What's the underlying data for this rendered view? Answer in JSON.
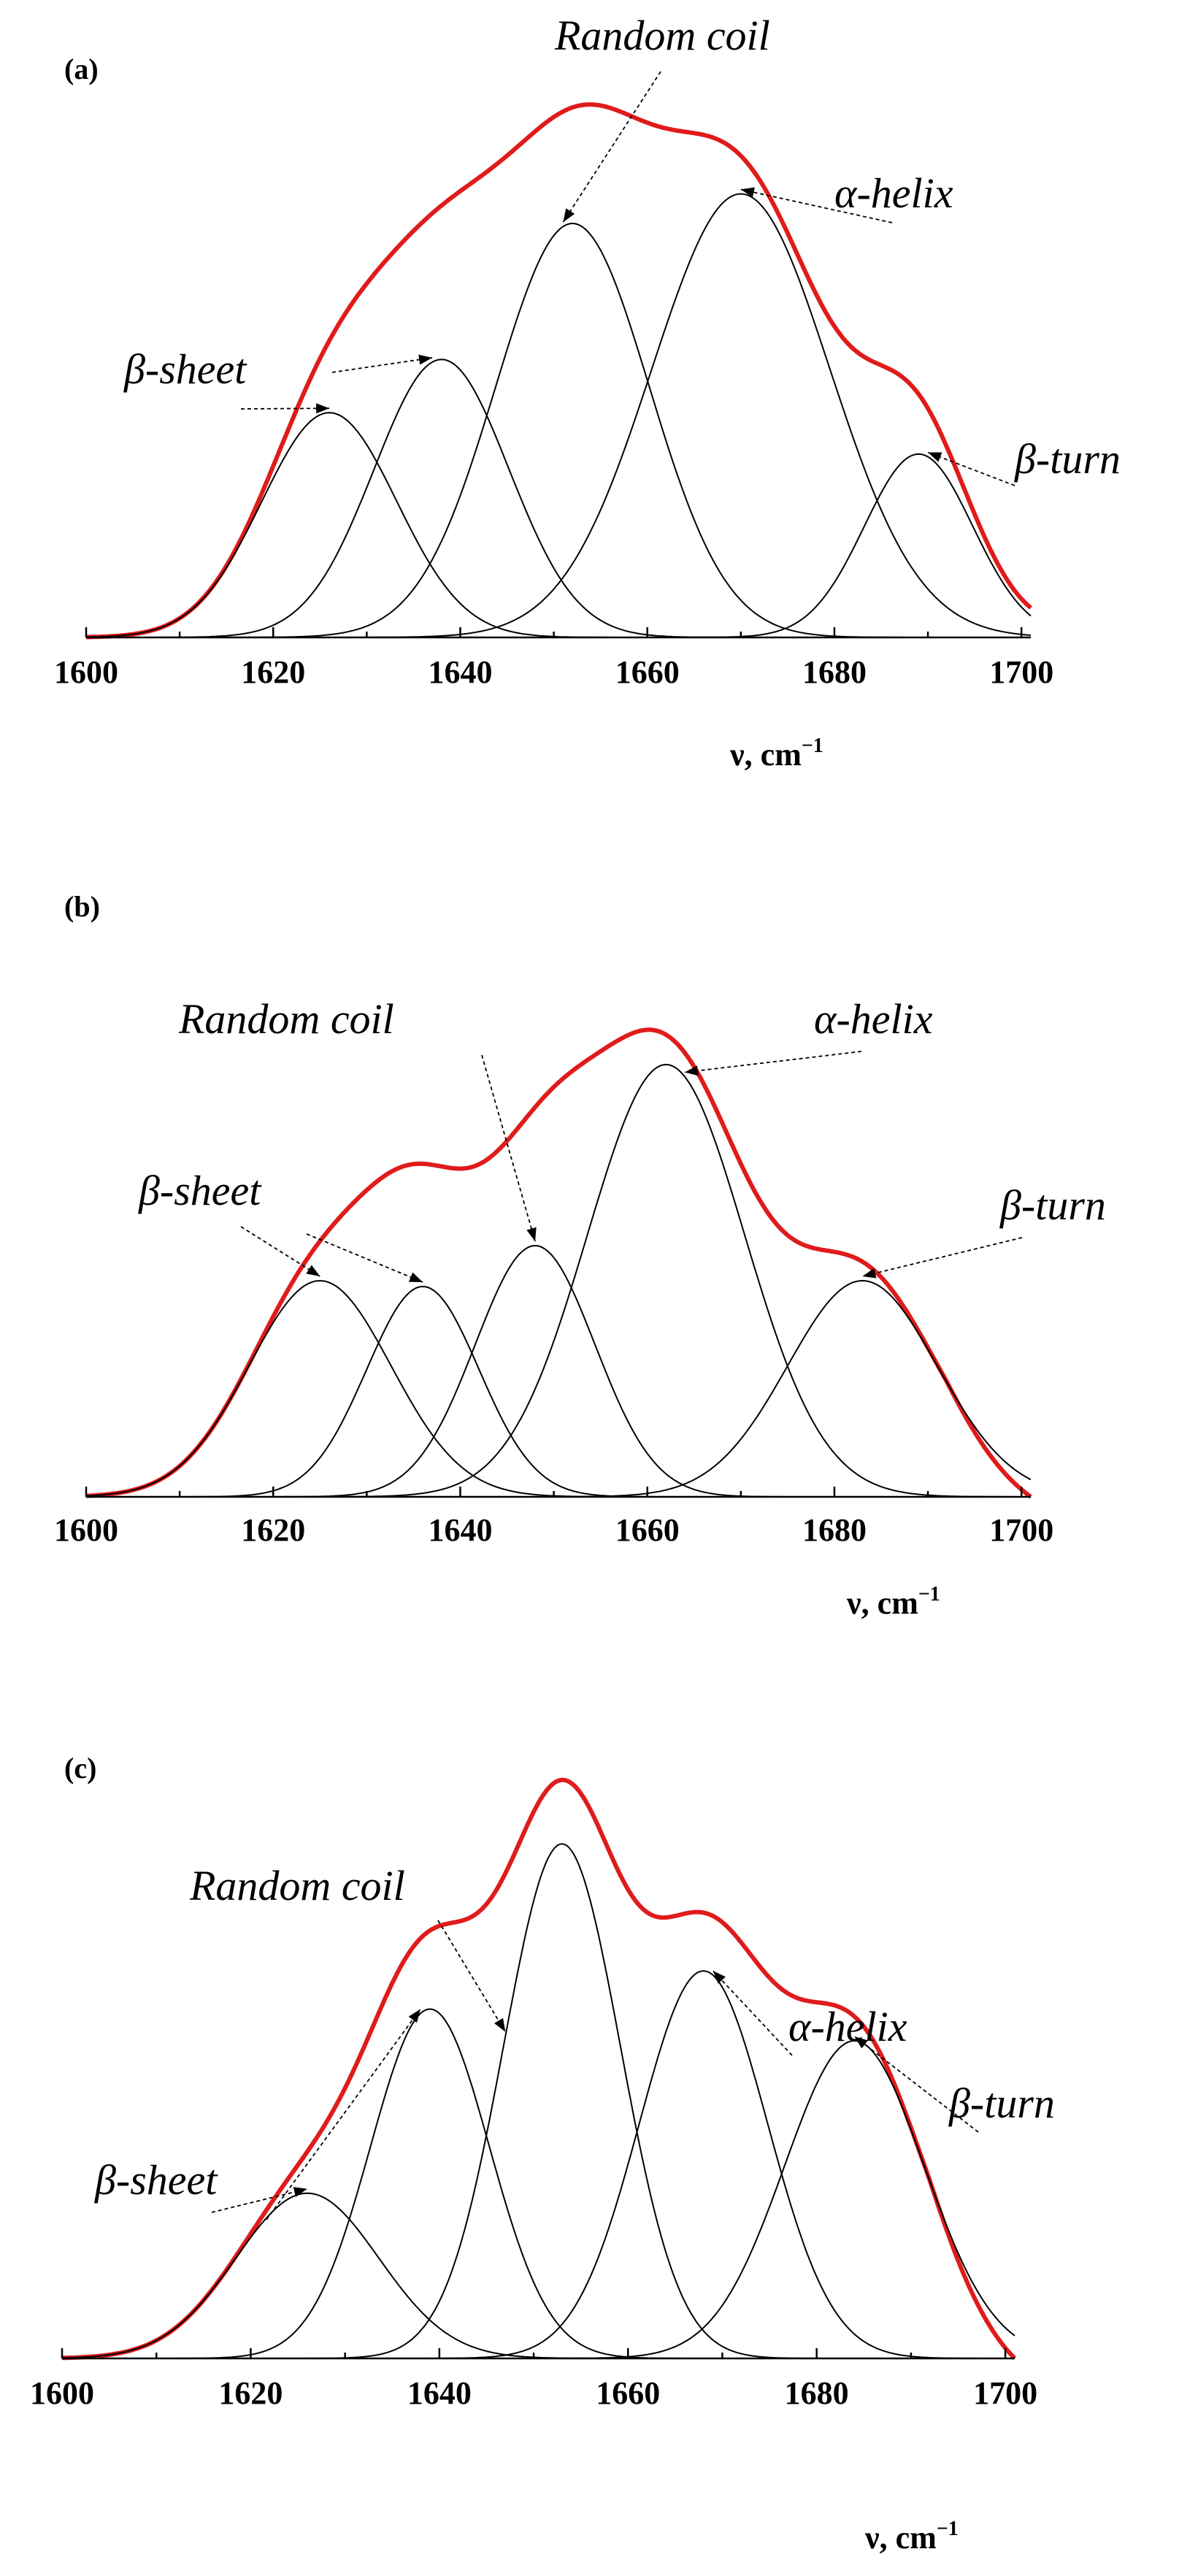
{
  "chart_data": [
    {
      "type": "line",
      "panel_label": "(a)",
      "xlabel": "ν, cm",
      "xlabel_sup": "−1",
      "xlim": [
        1600,
        1701
      ],
      "ylim": [
        0,
        1.0
      ],
      "x_ticks": [
        1600,
        1620,
        1640,
        1660,
        1680,
        1700
      ],
      "tick_labels": [
        "1600",
        "1620",
        "1640",
        "1660",
        "1680",
        "1700"
      ],
      "envelope": {
        "name": "sum",
        "color": "#e01b1b",
        "x_end": 1701,
        "y_end": 0.05
      },
      "series": [
        {
          "name": "β-sheet",
          "center": 1626,
          "height": 0.38,
          "sigma": 7.2
        },
        {
          "name": "β-sheet",
          "center": 1638,
          "height": 0.47,
          "sigma": 7.2
        },
        {
          "name": "Random coil",
          "center": 1652,
          "height": 0.7,
          "sigma": 8.2
        },
        {
          "name": "α-helix",
          "center": 1670,
          "height": 0.75,
          "sigma": 9.5
        },
        {
          "name": "β-turn",
          "center": 1689,
          "height": 0.31,
          "sigma": 5.8
        }
      ],
      "annotations": [
        {
          "text": "Random coil",
          "targets": [
            1651
          ]
        },
        {
          "text": "α-helix",
          "targets": [
            1670
          ]
        },
        {
          "text": "β-sheet",
          "targets": [
            1626,
            1637
          ]
        },
        {
          "text": "β-turn",
          "targets": [
            1690
          ]
        }
      ]
    },
    {
      "type": "line",
      "panel_label": "(b)",
      "xlabel": "ν, cm",
      "xlabel_sup": "−1",
      "xlim": [
        1600,
        1701
      ],
      "ylim": [
        0,
        1.0
      ],
      "x_ticks": [
        1600,
        1620,
        1640,
        1660,
        1680,
        1700
      ],
      "tick_labels": [
        "1600",
        "1620",
        "1640",
        "1660",
        "1680",
        "1700"
      ],
      "envelope": {
        "name": "sum",
        "color": "#e01b1b",
        "x_end": 1701,
        "y_end": 0.0
      },
      "series": [
        {
          "name": "β-sheet",
          "center": 1625,
          "height": 0.37,
          "sigma": 7.6
        },
        {
          "name": "β-sheet",
          "center": 1636,
          "height": 0.36,
          "sigma": 6.0
        },
        {
          "name": "Random coil",
          "center": 1648,
          "height": 0.43,
          "sigma": 6.4
        },
        {
          "name": "α-helix",
          "center": 1662,
          "height": 0.74,
          "sigma": 8.4
        },
        {
          "name": "β-turn",
          "center": 1683,
          "height": 0.37,
          "sigma": 8.0
        }
      ],
      "annotations": [
        {
          "text": "Random coil",
          "targets": [
            1648
          ]
        },
        {
          "text": "α-helix",
          "targets": [
            1664
          ]
        },
        {
          "text": "β-sheet",
          "targets": [
            1625,
            1636
          ]
        },
        {
          "text": "β-turn",
          "targets": [
            1683
          ]
        }
      ]
    },
    {
      "type": "line",
      "panel_label": "(c)",
      "xlabel": "ν, cm",
      "xlabel_sup": "−1",
      "xlim": [
        1600,
        1701
      ],
      "ylim": [
        0,
        1.0
      ],
      "x_ticks": [
        1600,
        1620,
        1640,
        1660,
        1680,
        1700
      ],
      "tick_labels": [
        "1600",
        "1620",
        "1640",
        "1660",
        "1680",
        "1700"
      ],
      "envelope": {
        "name": "sum",
        "color": "#e01b1b",
        "x_end": 1701,
        "y_end": 0.0
      },
      "series": [
        {
          "name": "β-sheet",
          "center": 1626,
          "height": 0.26,
          "sigma": 7.6
        },
        {
          "name": "β-sheet",
          "center": 1639,
          "height": 0.55,
          "sigma": 6.3
        },
        {
          "name": "Random coil",
          "center": 1653,
          "height": 0.81,
          "sigma": 6.2
        },
        {
          "name": "α-helix",
          "center": 1668,
          "height": 0.61,
          "sigma": 6.8
        },
        {
          "name": "β-turn",
          "center": 1684,
          "height": 0.5,
          "sigma": 7.4
        }
      ],
      "annotations": [
        {
          "text": "Random coil",
          "targets": [
            1647
          ]
        },
        {
          "text": "α-helix",
          "targets": [
            1669
          ]
        },
        {
          "text": "β-sheet",
          "targets": [
            1626,
            1638
          ]
        },
        {
          "text": "β-turn",
          "targets": [
            1684
          ]
        }
      ]
    }
  ]
}
